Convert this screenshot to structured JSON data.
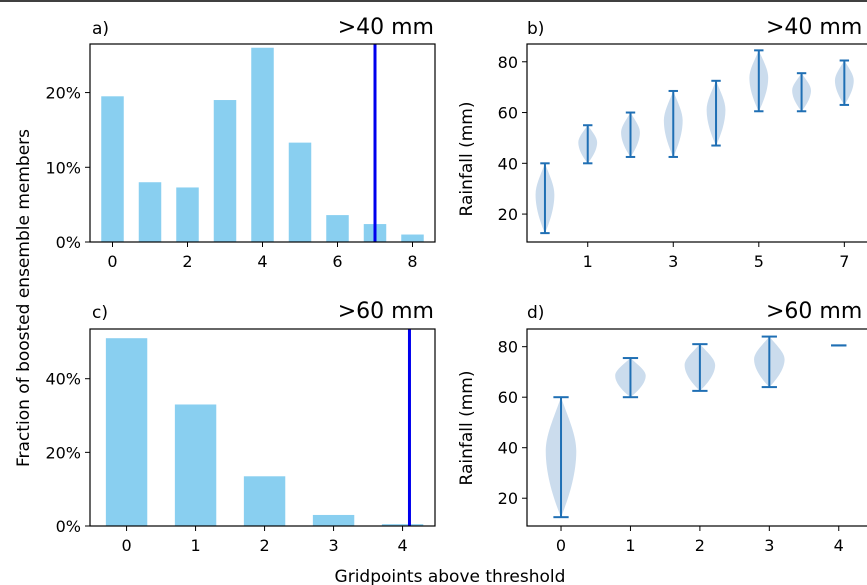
{
  "figure": {
    "shared_ylabel": "Fraction of boosted ensemble members",
    "shared_xlabel": "Gridpoints above threshold"
  },
  "colors": {
    "bar": "#89cff0",
    "observed_line": "#0000ee",
    "violin_fill": "#c2d6ea",
    "violin_line": "#1f6fb4",
    "frame": "#000000"
  },
  "chart_data": [
    {
      "panel": "a)",
      "title": ">40 mm",
      "type": "bar",
      "categories": [
        0,
        1,
        2,
        3,
        4,
        5,
        6,
        7,
        8
      ],
      "values": [
        19.5,
        8.0,
        7.3,
        19.0,
        26.0,
        13.3,
        3.6,
        2.4,
        1.0
      ],
      "xticks": [
        "0",
        "2",
        "4",
        "6",
        "8"
      ],
      "xtick_values": [
        0,
        2,
        4,
        6,
        8
      ],
      "yticks": [
        "0%",
        "10%",
        "20%"
      ],
      "ytick_values": [
        0,
        10,
        20
      ],
      "xlim": [
        -0.6,
        8.6
      ],
      "ylim": [
        0,
        26.5
      ],
      "vline_x": 7
    },
    {
      "panel": "b)",
      "title": ">40 mm",
      "type": "violin",
      "ylabel": "Rainfall (mm)",
      "categories": [
        0,
        1,
        2,
        3,
        4,
        5,
        6,
        7
      ],
      "min": [
        12.5,
        40,
        42.5,
        42.5,
        47,
        60.5,
        60.5,
        63
      ],
      "max": [
        40,
        55,
        60,
        68.5,
        72.5,
        84.5,
        75.5,
        80.5
      ],
      "xticks": [
        "1",
        "3",
        "5",
        "7"
      ],
      "xtick_values": [
        1,
        3,
        5,
        7
      ],
      "yticks": [
        "20",
        "40",
        "60",
        "80"
      ],
      "ytick_values": [
        20,
        40,
        60,
        80
      ],
      "xlim": [
        -0.42,
        7.6
      ],
      "ylim": [
        9,
        87
      ]
    },
    {
      "panel": "c)",
      "title": ">60 mm",
      "type": "bar",
      "categories": [
        0,
        1,
        2,
        3,
        4
      ],
      "values": [
        51.0,
        33.0,
        13.5,
        3.0,
        0.5
      ],
      "xticks": [
        "0",
        "1",
        "2",
        "3",
        "4"
      ],
      "xtick_values": [
        0,
        1,
        2,
        3,
        4
      ],
      "yticks": [
        "0%",
        "20%",
        "40%"
      ],
      "ytick_values": [
        0,
        20,
        40
      ],
      "xlim": [
        -0.53,
        4.47
      ],
      "ylim": [
        0,
        53.5
      ],
      "vline_x": 4.1
    },
    {
      "panel": "d)",
      "title": ">60 mm",
      "type": "violin",
      "ylabel": "Rainfall (mm)",
      "categories": [
        0,
        1,
        2,
        3,
        4
      ],
      "min": [
        12.5,
        60,
        62.5,
        64,
        80.5
      ],
      "max": [
        60,
        75.5,
        81,
        84,
        80.5
      ],
      "xticks": [
        "0",
        "1",
        "2",
        "3",
        "4"
      ],
      "xtick_values": [
        0,
        1,
        2,
        3,
        4
      ],
      "yticks": [
        "20",
        "40",
        "60",
        "80"
      ],
      "ytick_values": [
        20,
        40,
        60,
        80
      ],
      "xlim": [
        -0.49,
        4.45
      ],
      "ylim": [
        9,
        87
      ]
    }
  ]
}
